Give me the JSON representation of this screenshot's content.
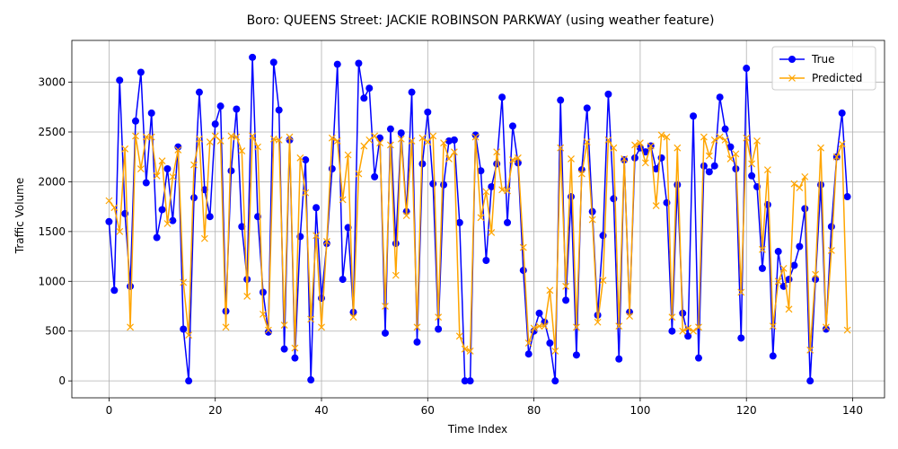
{
  "chart_data": {
    "type": "line",
    "title": "Boro: QUEENS Street: JACKIE ROBINSON PARKWAY (using weather feature)",
    "xlabel": "Time Index",
    "ylabel": "Traffic Volume",
    "xlim": [
      -7,
      146
    ],
    "ylim": [
      -170,
      3420
    ],
    "xticks": [
      0,
      20,
      40,
      60,
      80,
      100,
      120,
      140
    ],
    "yticks": [
      0,
      500,
      1000,
      1500,
      2000,
      2500,
      3000
    ],
    "grid": true,
    "legend_position": "top-right",
    "series": [
      {
        "name": "True",
        "color": "#0000ff",
        "marker": "circle",
        "values": [
          1600,
          910,
          3020,
          1680,
          950,
          2610,
          3100,
          1990,
          2690,
          1440,
          1720,
          2130,
          1610,
          2350,
          520,
          0,
          1840,
          2900,
          1920,
          1650,
          2580,
          2760,
          700,
          2110,
          2730,
          1550,
          1020,
          3250,
          1650,
          890,
          490,
          3200,
          2720,
          320,
          2420,
          230,
          1450,
          2220,
          10,
          1740,
          830,
          1380,
          2130,
          3180,
          1020,
          1540,
          690,
          3190,
          2840,
          2940,
          2050,
          2440,
          480,
          2530,
          1380,
          2490,
          1700,
          2900,
          390,
          2180,
          2700,
          1980,
          520,
          1970,
          2410,
          2420,
          1590,
          0,
          0,
          2470,
          2110,
          1210,
          1950,
          2180,
          2850,
          1590,
          2560,
          2190,
          1110,
          270,
          500,
          680,
          590,
          380,
          0,
          2820,
          810,
          1850,
          260,
          2120,
          2740,
          1700,
          660,
          1460,
          2880,
          1830,
          220,
          2220,
          690,
          2240,
          2340,
          2300,
          2360,
          2130,
          2240,
          1790,
          500,
          1970,
          680,
          450,
          2660,
          230,
          2160,
          2100,
          2160,
          2850,
          2530,
          2350,
          2130,
          430,
          3140,
          2060,
          1950,
          1130,
          1770,
          250,
          1300,
          950,
          1020,
          1160,
          1350,
          1730,
          0,
          1020,
          1970,
          520,
          1550,
          2250,
          2690,
          1850
        ]
      },
      {
        "name": "Predicted",
        "color": "#ffa500",
        "marker": "x",
        "values": [
          1810,
          1740,
          1500,
          2330,
          540,
          2460,
          2130,
          2450,
          2450,
          2060,
          2210,
          1580,
          2050,
          2320,
          990,
          460,
          2170,
          2430,
          1430,
          2400,
          2460,
          2410,
          540,
          2460,
          2450,
          2310,
          850,
          2460,
          2350,
          670,
          510,
          2430,
          2420,
          560,
          2450,
          330,
          2240,
          1890,
          620,
          1460,
          540,
          1400,
          2440,
          2410,
          1820,
          2270,
          640,
          2080,
          2360,
          2420,
          2460,
          2390,
          750,
          2370,
          1060,
          2430,
          1660,
          2410,
          540,
          2440,
          2400,
          2460,
          640,
          2390,
          2230,
          2300,
          450,
          320,
          300,
          2450,
          1640,
          1900,
          1490,
          2300,
          1920,
          1910,
          2220,
          2240,
          1340,
          380,
          530,
          550,
          550,
          910,
          300,
          2340,
          950,
          2230,
          540,
          2080,
          2400,
          1620,
          590,
          1010,
          2420,
          2340,
          550,
          2230,
          650,
          2370,
          2390,
          2190,
          2360,
          1760,
          2470,
          2450,
          640,
          2340,
          500,
          530,
          500,
          540,
          2450,
          2260,
          2420,
          2450,
          2420,
          2230,
          2280,
          890,
          2440,
          2180,
          2410,
          1320,
          2120,
          550,
          1000,
          1130,
          720,
          1980,
          1940,
          2050,
          310,
          1070,
          2340,
          540,
          1310,
          2250,
          2380,
          510
        ]
      }
    ]
  }
}
